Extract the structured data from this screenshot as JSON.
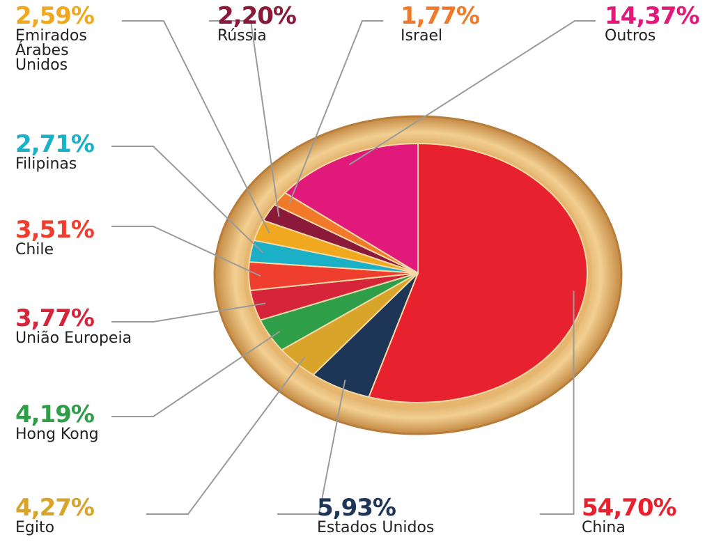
{
  "chart_data": {
    "type": "pie",
    "categories": [
      "China",
      "Estados Unidos",
      "Egito",
      "Hong Kong",
      "União Europeia",
      "Chile",
      "Filipinas",
      "Emirados Árabes Unidos",
      "Rússia",
      "Israel",
      "Outros"
    ],
    "values": [
      54.7,
      5.93,
      4.27,
      4.19,
      3.77,
      3.51,
      2.71,
      2.59,
      2.2,
      1.77,
      14.37
    ],
    "value_labels": [
      "54,70%",
      "5,93%",
      "4,27%",
      "4,19%",
      "3,77%",
      "3,51%",
      "2,71%",
      "2,59%",
      "2,20%",
      "1,77%",
      "14,37%"
    ],
    "colors": [
      "#e8212e",
      "#1d3556",
      "#d9a42a",
      "#2e9e48",
      "#d6243a",
      "#ef3e2e",
      "#1ab0c8",
      "#f0a81e",
      "#8b1a3a",
      "#f07a2a",
      "#e0197a"
    ]
  }
}
